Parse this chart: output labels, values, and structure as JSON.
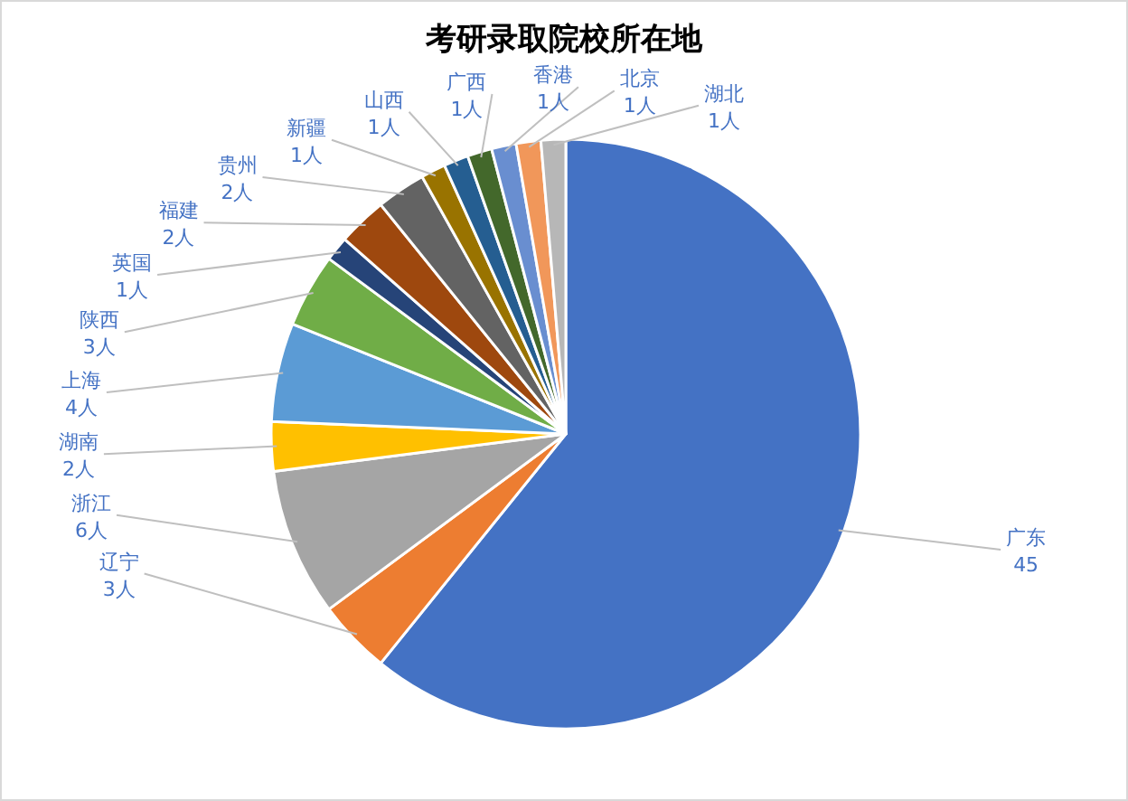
{
  "chart_data": {
    "type": "pie",
    "title": "考研录取院校所在地",
    "categories": [
      "广东",
      "辽宁",
      "浙江",
      "湖南",
      "上海",
      "陕西",
      "英国",
      "福建",
      "贵州",
      "新疆",
      "山西",
      "广西",
      "香港",
      "北京",
      "湖北"
    ],
    "values": [
      45,
      3,
      6,
      2,
      4,
      3,
      1,
      2,
      2,
      1,
      1,
      1,
      1,
      1,
      1
    ],
    "value_labels": [
      "45",
      "3人",
      "6人",
      "2人",
      "4人",
      "3人",
      "1人",
      "2人",
      "2人",
      "1人",
      "1人",
      "1人",
      "1人",
      "1人",
      "1人"
    ],
    "colors": [
      "#4472c4",
      "#ed7d31",
      "#a5a5a5",
      "#ffc000",
      "#5b9bd5",
      "#70ad47",
      "#264478",
      "#9e480e",
      "#636363",
      "#997300",
      "#255e91",
      "#43682b",
      "#698ed0",
      "#f1975a",
      "#b7b7b7"
    ]
  }
}
